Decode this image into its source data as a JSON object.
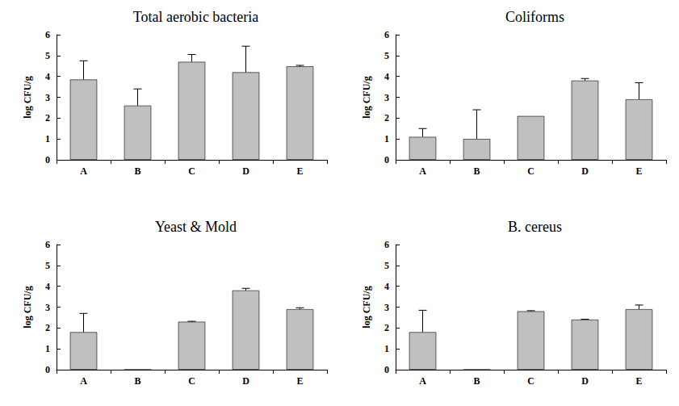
{
  "chart_data": [
    {
      "type": "bar",
      "title": "Total aerobic bacteria",
      "y_label": "log CFU/g",
      "categories": [
        "A",
        "B",
        "C",
        "D",
        "E"
      ],
      "values": [
        3.85,
        2.6,
        4.7,
        4.2,
        4.48
      ],
      "errors": [
        0.9,
        0.8,
        0.35,
        1.25,
        0.05
      ],
      "color": "#c0c0c0",
      "ylim": [
        0,
        6
      ],
      "yticks": [
        0,
        1,
        2,
        3,
        4,
        5,
        6
      ],
      "grid": false
    },
    {
      "type": "bar",
      "title": "Coliforms",
      "y_label": "log CFU/g",
      "categories": [
        "A",
        "B",
        "C",
        "D",
        "E"
      ],
      "values": [
        1.1,
        1.0,
        2.1,
        3.8,
        2.9
      ],
      "errors": [
        0.4,
        1.4,
        0,
        0.1,
        0.8
      ],
      "color": "#c0c0c0",
      "ylim": [
        0,
        6
      ],
      "yticks": [
        0,
        1,
        2,
        3,
        4,
        5,
        6
      ],
      "grid": false
    },
    {
      "type": "bar",
      "title": "Yeast & Mold",
      "y_label": "log CFU/g",
      "categories": [
        "A",
        "B",
        "C",
        "D",
        "E"
      ],
      "values": [
        1.8,
        0,
        2.3,
        3.8,
        2.9
      ],
      "errors": [
        0.9,
        0,
        0.02,
        0.1,
        0.07
      ],
      "color": "#c0c0c0",
      "ylim": [
        0,
        6
      ],
      "yticks": [
        0,
        1,
        2,
        3,
        4,
        5,
        6
      ],
      "grid": false
    },
    {
      "type": "bar",
      "title": "B. cereus",
      "y_label": "log CFU/g",
      "categories": [
        "A",
        "B",
        "C",
        "D",
        "E"
      ],
      "values": [
        1.8,
        0,
        2.8,
        2.4,
        2.9
      ],
      "errors": [
        1.05,
        0,
        0.03,
        0.02,
        0.2
      ],
      "color": "#c0c0c0",
      "ylim": [
        0,
        6
      ],
      "yticks": [
        0,
        1,
        2,
        3,
        4,
        5,
        6
      ],
      "grid": false
    }
  ]
}
